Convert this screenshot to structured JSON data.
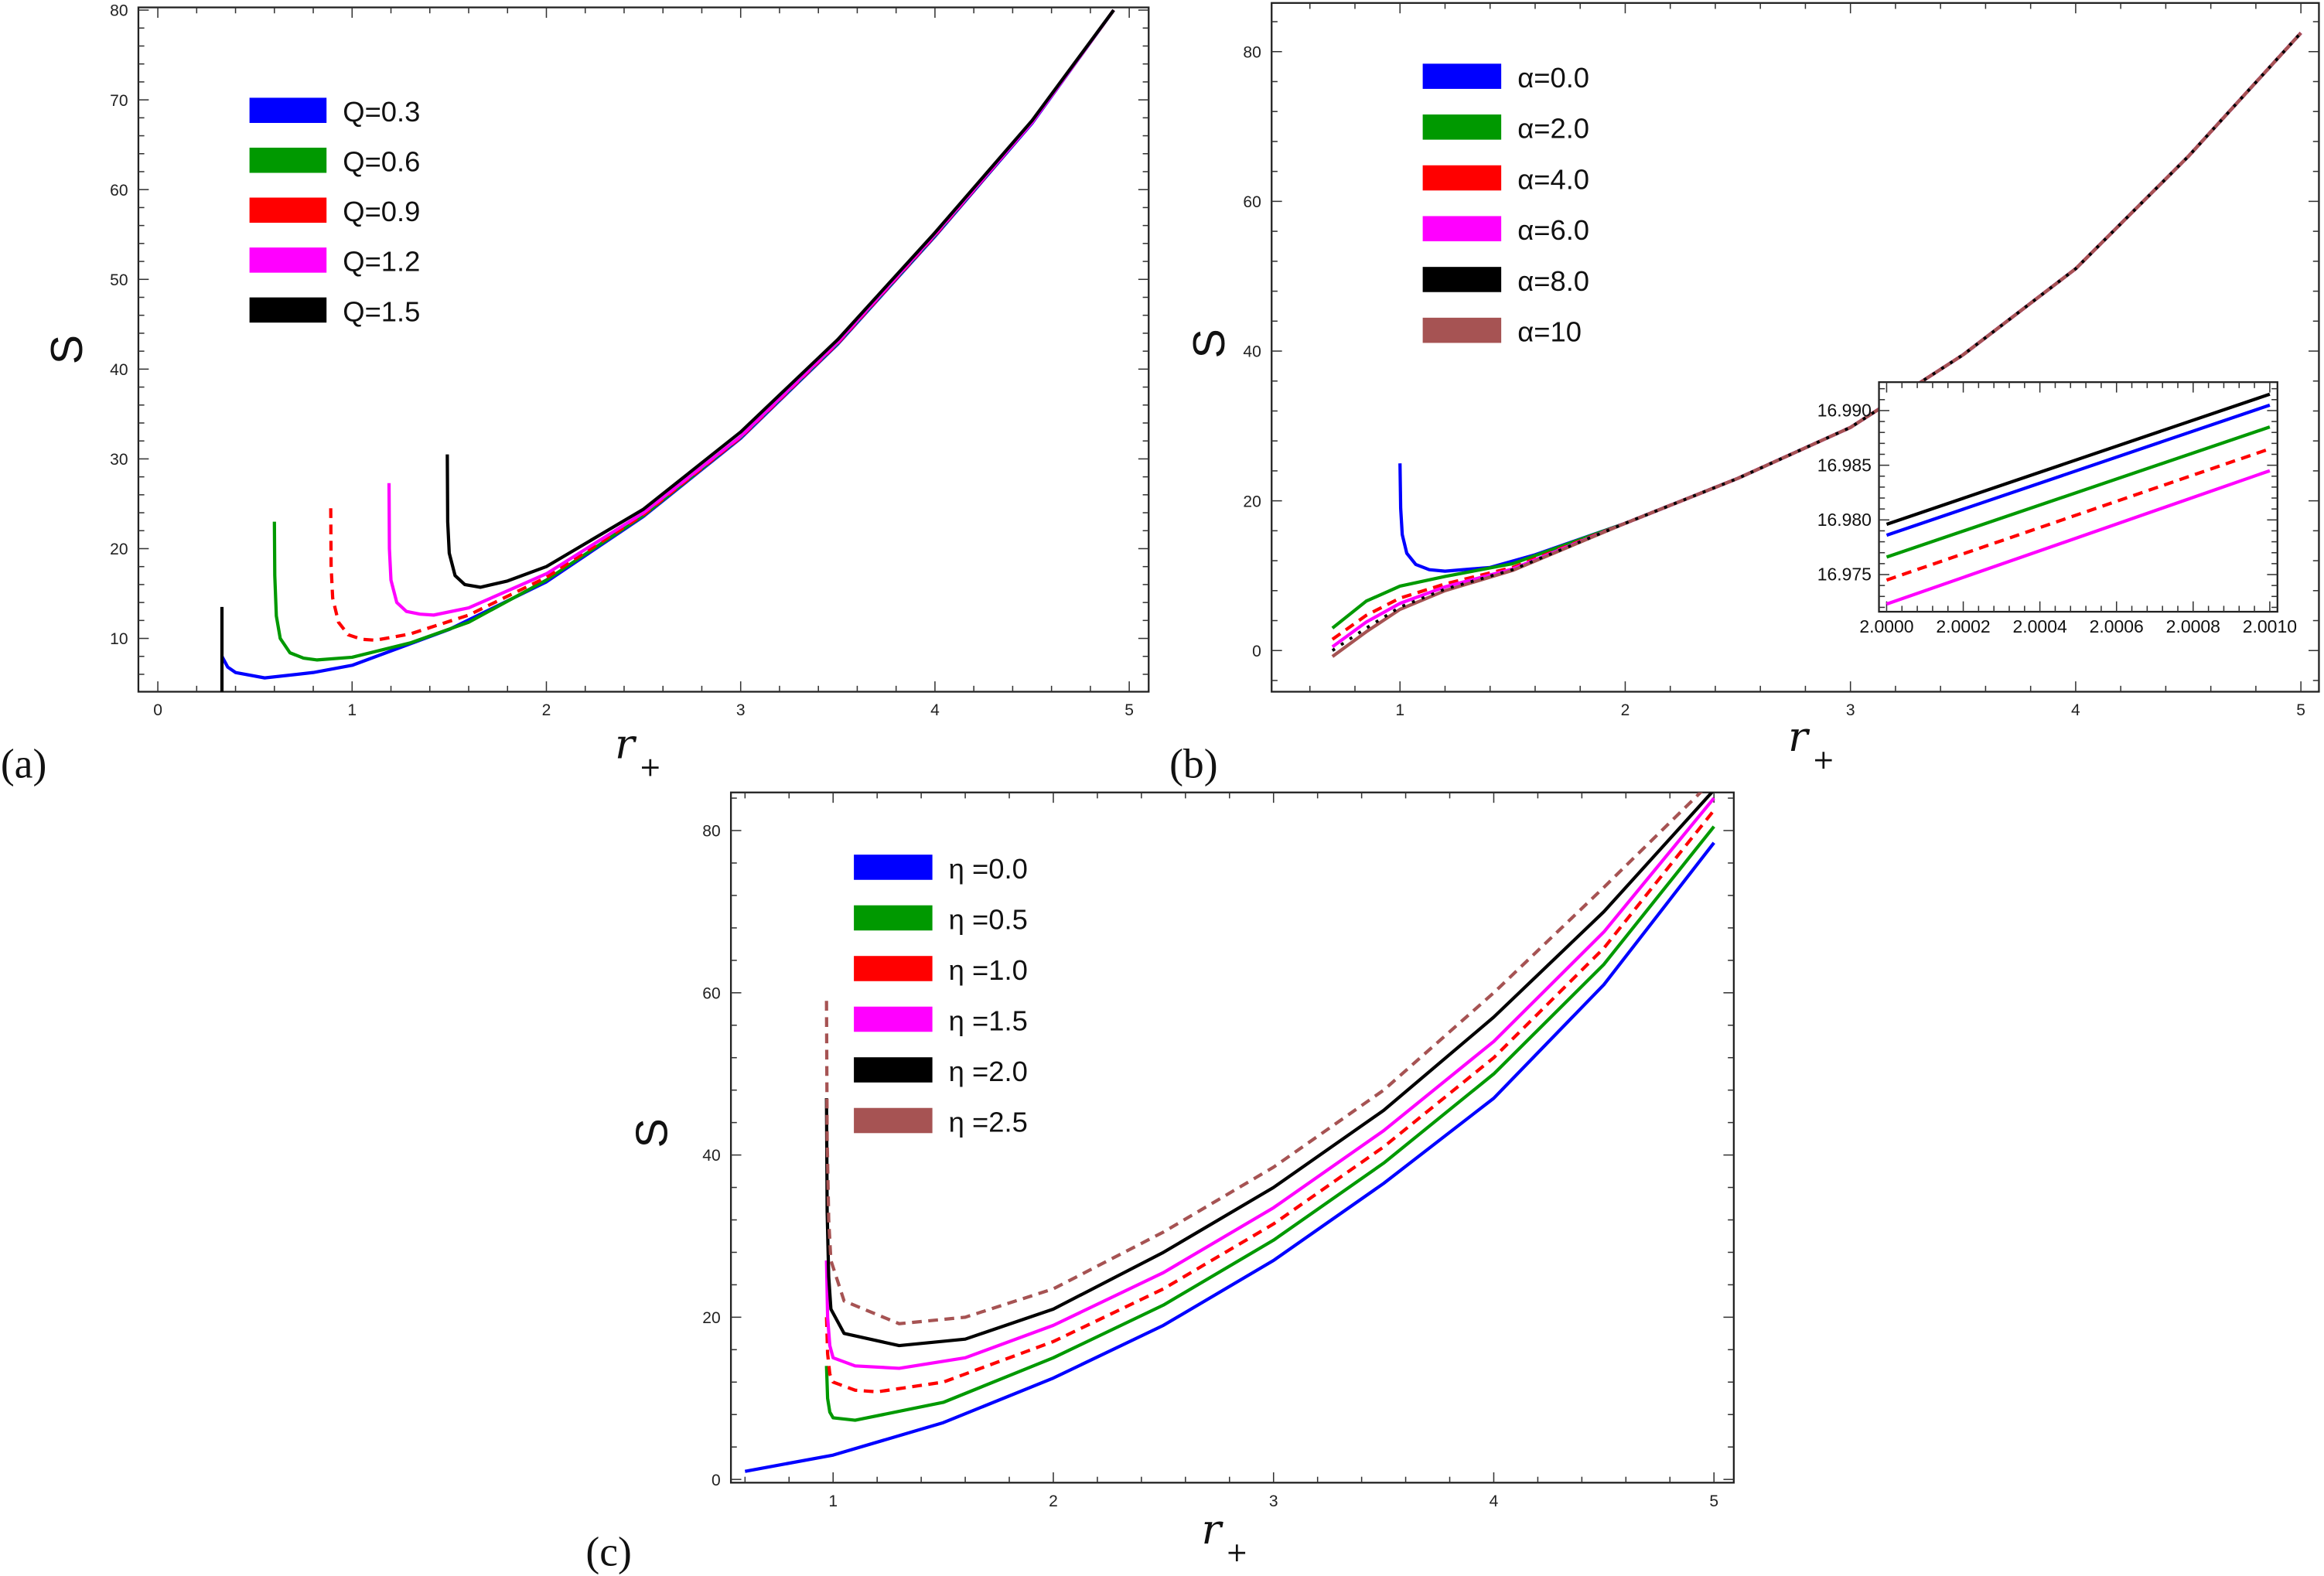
{
  "colors": {
    "blue": "#0000ff",
    "green": "#009900",
    "red": "#ff0000",
    "magenta": "#ff00ff",
    "black": "#000000",
    "brown": "#a65353"
  },
  "chart_data": [
    {
      "id": "a",
      "panel_label": "(a)",
      "type": "line",
      "xlabel": "r",
      "xlabel_sub": "+",
      "ylabel": "S",
      "xlim": [
        -0.1,
        5.1
      ],
      "ylim": [
        4.06,
        80.3
      ],
      "xticks": [
        "0",
        "1",
        "2",
        "3",
        "4",
        "5"
      ],
      "xtick_values": [
        0,
        1,
        2,
        3,
        4,
        5
      ],
      "yticks": [
        "10",
        "20",
        "30",
        "40",
        "50",
        "60",
        "70",
        "80"
      ],
      "ytick_values": [
        10,
        20,
        30,
        40,
        50,
        60,
        70,
        80
      ],
      "legend_position": "top-left",
      "series": [
        {
          "name": "Q=0.3",
          "color": "blue",
          "dash": false,
          "x": [
            0.33,
            0.36,
            0.4,
            0.55,
            0.8,
            1,
            1.5,
            2,
            2.5,
            3,
            3.5,
            4,
            4.5,
            4.92
          ],
          "y": [
            8,
            6.8,
            6.2,
            5.6,
            6.2,
            7,
            11,
            16.3,
            23.6,
            32.3,
            42.8,
            54.8,
            67.4,
            80
          ]
        },
        {
          "name": "Q=0.6",
          "color": "green",
          "dash": false,
          "x": [
            0.6,
            0.602,
            0.61,
            0.63,
            0.68,
            0.75,
            0.82,
            1,
            1.3,
            1.6,
            2,
            2.5,
            3,
            3.5,
            4,
            4.5,
            4.92
          ],
          "y": [
            23,
            17,
            12.5,
            10,
            8.4,
            7.8,
            7.6,
            7.9,
            9.5,
            11.8,
            16.5,
            23.7,
            32.4,
            42.9,
            54.9,
            67.5,
            80
          ]
        },
        {
          "name": "Q=0.9",
          "color": "red",
          "dash": true,
          "x": [
            0.89,
            0.892,
            0.9,
            0.93,
            0.98,
            1.05,
            1.12,
            1.3,
            1.6,
            2,
            2.5,
            3,
            3.5,
            4,
            4.5,
            4.92
          ],
          "y": [
            24.5,
            18,
            14.5,
            11.8,
            10.4,
            9.9,
            9.8,
            10.5,
            12.6,
            16.8,
            23.8,
            32.4,
            42.9,
            54.9,
            67.5,
            80
          ]
        },
        {
          "name": "Q=1.2",
          "color": "magenta",
          "dash": false,
          "x": [
            1.19,
            1.192,
            1.2,
            1.23,
            1.28,
            1.35,
            1.42,
            1.6,
            2,
            2.5,
            3,
            3.5,
            4,
            4.5,
            4.92
          ],
          "y": [
            27.3,
            20,
            16.5,
            14,
            13,
            12.7,
            12.6,
            13.4,
            17.2,
            24,
            32.5,
            43,
            55,
            67.5,
            80
          ]
        },
        {
          "name": "Q=1.5",
          "color": "black",
          "dash": false,
          "x": [
            1.49,
            1.492,
            1.5,
            1.53,
            1.58,
            1.66,
            1.8,
            2,
            2.5,
            3,
            3.5,
            4,
            4.5,
            4.92
          ],
          "y": [
            30.5,
            23,
            19.5,
            17,
            16,
            15.7,
            16.4,
            18,
            24.4,
            33,
            43.3,
            55.2,
            67.7,
            80
          ]
        },
        {
          "name": null,
          "legend": false,
          "color": "black",
          "dash": false,
          "x": [
            0.33,
            0.33
          ],
          "y": [
            4.06,
            13.5
          ]
        }
      ]
    },
    {
      "id": "b",
      "panel_label": "(b)",
      "type": "line",
      "xlabel": "r",
      "xlabel_sub": "+",
      "ylabel": "S",
      "xlim": [
        0.43,
        5.08
      ],
      "ylim": [
        -5.5,
        86.5
      ],
      "xticks": [
        "1",
        "2",
        "3",
        "4",
        "5"
      ],
      "xtick_values": [
        1,
        2,
        3,
        4,
        5
      ],
      "yticks": [
        "0",
        "20",
        "40",
        "60",
        "80"
      ],
      "ytick_values": [
        0,
        20,
        40,
        60,
        80
      ],
      "legend_position": "top-left",
      "series": [
        {
          "name": "α=0.0",
          "color": "blue",
          "dash": false,
          "x": [
            1,
            1.003,
            1.01,
            1.03,
            1.07,
            1.13,
            1.2,
            1.4,
            1.6,
            2,
            2.5,
            3,
            3.5,
            4,
            4.5,
            5
          ],
          "y": [
            25,
            19,
            15.5,
            13,
            11.5,
            10.8,
            10.6,
            11.1,
            12.8,
            17,
            23,
            29.8,
            39.5,
            51,
            66,
            82.5
          ]
        },
        {
          "name": "α=2.0",
          "color": "green",
          "dash": false,
          "x": [
            0.7,
            0.85,
            1,
            1.2,
            1.5,
            2,
            2.5,
            3,
            3.5,
            4,
            4.5,
            5
          ],
          "y": [
            3,
            6.6,
            8.6,
            9.9,
            11.6,
            17,
            23,
            29.8,
            39.5,
            51,
            66,
            82.5
          ]
        },
        {
          "name": "α=4.0",
          "color": "red",
          "dash": true,
          "x": [
            0.7,
            0.85,
            1,
            1.2,
            1.5,
            2,
            2.5,
            3,
            3.5,
            4,
            4.5,
            5
          ],
          "y": [
            1.5,
            4.7,
            7,
            8.9,
            11.1,
            17,
            23,
            29.8,
            39.5,
            51,
            66,
            82.5
          ]
        },
        {
          "name": "α=6.0",
          "color": "magenta",
          "dash": false,
          "x": [
            0.7,
            0.85,
            1,
            1.2,
            1.5,
            2,
            2.5,
            3,
            3.5,
            4,
            4.5,
            5
          ],
          "y": [
            0.5,
            3.8,
            6.3,
            8.5,
            10.9,
            17,
            23,
            29.8,
            39.5,
            51,
            66,
            82.5
          ]
        },
        {
          "name": "α=10",
          "color": "brown",
          "dash": false,
          "x": [
            0.7,
            0.85,
            1,
            1.2,
            1.5,
            2,
            2.5,
            3,
            3.5,
            4,
            4.5,
            5
          ],
          "y": [
            -0.8,
            2.5,
            5.5,
            8,
            10.7,
            17,
            23,
            29.8,
            39.5,
            51,
            66,
            82.5
          ]
        },
        {
          "name": "α=8.0",
          "color": "black",
          "dash": "dot",
          "x": [
            0.7,
            0.85,
            1,
            1.2,
            1.5,
            2,
            2.5,
            3,
            3.5,
            4,
            4.5,
            5
          ],
          "y": [
            0,
            3,
            5.8,
            8.2,
            10.8,
            17,
            23,
            29.8,
            39.5,
            51,
            66,
            82.5
          ]
        }
      ],
      "legend_order": [
        "α=0.0",
        "α=2.0",
        "α=4.0",
        "α=6.0",
        "α=8.0",
        "α=10"
      ],
      "inset": {
        "type": "line",
        "xlim": [
          1.99998,
          2.00102
        ],
        "ylim": [
          16.9716,
          16.9926
        ],
        "xticks": [
          "2.0000",
          "2.0002",
          "2.0004",
          "2.0006",
          "2.0008",
          "2.0010"
        ],
        "xtick_values": [
          2.0,
          2.0002,
          2.0004,
          2.0006,
          2.0008,
          2.001
        ],
        "yticks": [
          "16.975",
          "16.980",
          "16.985",
          "16.990"
        ],
        "ytick_values": [
          16.975,
          16.98,
          16.985,
          16.99
        ],
        "series": [
          {
            "name": "α=8.0",
            "color": "black",
            "dash": false,
            "x": [
              2.0,
              2.001
            ],
            "y": [
              16.9796,
              16.9915
            ]
          },
          {
            "name": "α=0.0",
            "color": "blue",
            "dash": false,
            "x": [
              2.0,
              2.001
            ],
            "y": [
              16.9786,
              16.9905
            ]
          },
          {
            "name": "α=2.0",
            "color": "green",
            "dash": false,
            "x": [
              2.0,
              2.001
            ],
            "y": [
              16.9766,
              16.9885
            ]
          },
          {
            "name": "α=4.0",
            "color": "red",
            "dash": true,
            "x": [
              2.0,
              2.001
            ],
            "y": [
              16.9745,
              16.9865
            ]
          },
          {
            "name": "α=6.0",
            "color": "magenta",
            "dash": false,
            "x": [
              2.0,
              2.001
            ],
            "y": [
              16.9723,
              16.9845
            ]
          }
        ]
      }
    },
    {
      "id": "c",
      "panel_label": "(c)",
      "type": "line",
      "xlabel": "r",
      "xlabel_sub": "+",
      "ylabel": "S",
      "xlim": [
        0.536,
        5.09
      ],
      "ylim": [
        -0.4,
        84.7
      ],
      "xticks": [
        "1",
        "2",
        "3",
        "4",
        "5"
      ],
      "xtick_values": [
        1,
        2,
        3,
        4,
        5
      ],
      "yticks": [
        "0",
        "20",
        "40",
        "60",
        "80"
      ],
      "ytick_values": [
        0,
        20,
        40,
        60,
        80
      ],
      "legend_position": "top-left",
      "series": [
        {
          "name": "η =0.0",
          "color": "blue",
          "dash": false,
          "x": [
            0.6,
            1,
            1.5,
            2,
            2.5,
            3,
            3.5,
            4,
            4.5,
            5
          ],
          "y": [
            1,
            3,
            7,
            12.5,
            19,
            27,
            36.5,
            47,
            61,
            78.5
          ]
        },
        {
          "name": "η =0.5",
          "color": "green",
          "dash": false,
          "x": [
            0.97,
            0.975,
            0.985,
            1,
            1.1,
            1.5,
            2,
            2.5,
            3,
            3.5,
            4,
            4.5,
            5
          ],
          "y": [
            14,
            10,
            8.3,
            7.6,
            7.3,
            9.5,
            15,
            21.5,
            29.5,
            39,
            50,
            63.5,
            80.5
          ]
        },
        {
          "name": "η =1.0",
          "color": "red",
          "dash": true,
          "x": [
            0.97,
            0.975,
            0.985,
            1,
            1.1,
            1.2,
            1.5,
            2,
            2.5,
            3,
            3.5,
            4,
            4.5,
            5
          ],
          "y": [
            20,
            15.5,
            13,
            12,
            11,
            10.8,
            12,
            17,
            23.5,
            31.5,
            41,
            52,
            65.5,
            82.5
          ]
        },
        {
          "name": "η =1.5",
          "color": "magenta",
          "dash": false,
          "x": [
            0.97,
            0.975,
            0.985,
            1,
            1.1,
            1.3,
            1.6,
            2,
            2.5,
            3,
            3.5,
            4,
            4.5,
            5
          ],
          "y": [
            27,
            20,
            16.5,
            15,
            14,
            13.7,
            15,
            19,
            25.5,
            33.5,
            43,
            54,
            67.5,
            84
          ]
        },
        {
          "name": "η =2.0",
          "color": "black",
          "dash": false,
          "x": [
            0.97,
            0.973,
            0.98,
            0.99,
            1.05,
            1.3,
            1.6,
            2,
            2.5,
            3,
            3.5,
            4,
            4.5,
            5
          ],
          "y": [
            47,
            33,
            25,
            21,
            18,
            16.5,
            17.3,
            21,
            28,
            36,
            45.5,
            57,
            70,
            85
          ]
        },
        {
          "name": "η =2.5",
          "color": "brown",
          "dash": true,
          "x": [
            0.97,
            0.973,
            0.98,
            0.99,
            1.05,
            1.3,
            1.6,
            2,
            2.5,
            3,
            3.5,
            4,
            4.5,
            4.95
          ],
          "y": [
            59,
            42,
            32,
            27,
            22,
            19.2,
            20,
            23.5,
            30.5,
            38.5,
            48,
            60,
            73,
            85
          ]
        }
      ]
    }
  ]
}
